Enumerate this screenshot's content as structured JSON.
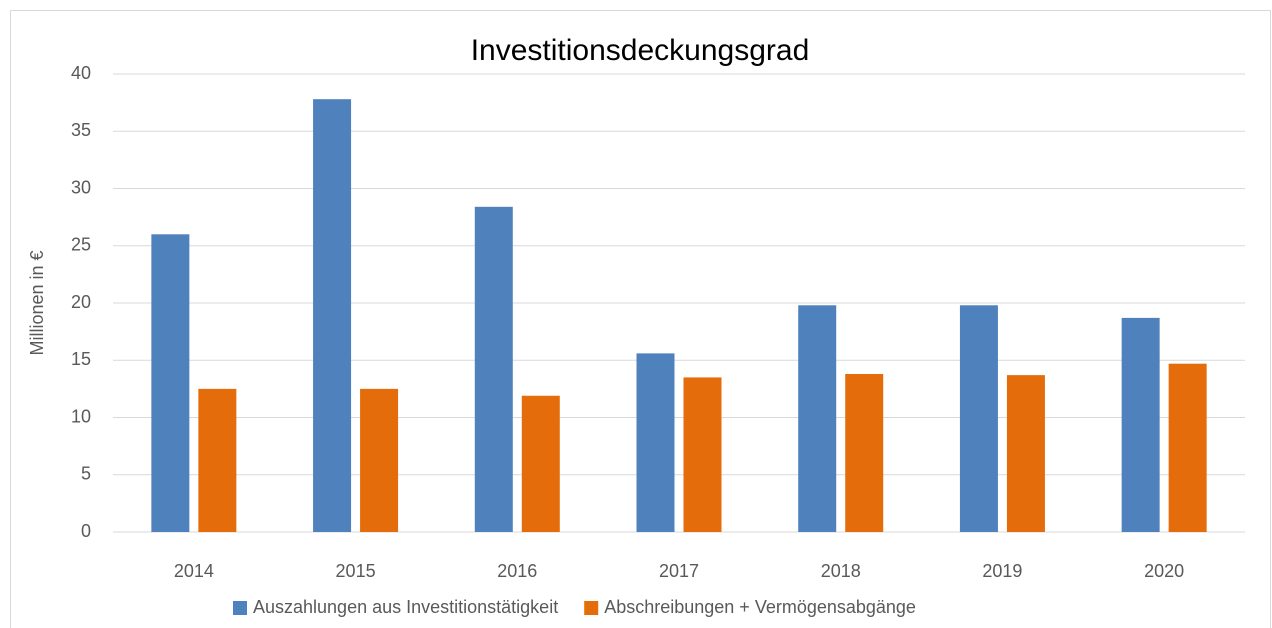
{
  "chart_data": {
    "type": "bar",
    "title": "Investitionsdeckungsgrad",
    "ylabel": "Millionen in €",
    "categories": [
      "2014",
      "2015",
      "2016",
      "2017",
      "2018",
      "2019",
      "2020"
    ],
    "series": [
      {
        "name": "Auszahlungen aus Investitionstätigkeit",
        "color": "#4f81bd",
        "values": [
          26,
          37.8,
          28.4,
          15.6,
          19.8,
          19.8,
          18.7
        ]
      },
      {
        "name": "Abschreibungen + Vermögensabgänge",
        "color": "#e46c0a",
        "values": [
          12.5,
          12.5,
          11.9,
          13.5,
          13.8,
          13.7,
          14.7
        ]
      }
    ],
    "ylim": [
      0,
      40
    ],
    "yticks": [
      0,
      5,
      10,
      15,
      20,
      25,
      30,
      35,
      40
    ],
    "grid": true,
    "legend": "bottom"
  }
}
